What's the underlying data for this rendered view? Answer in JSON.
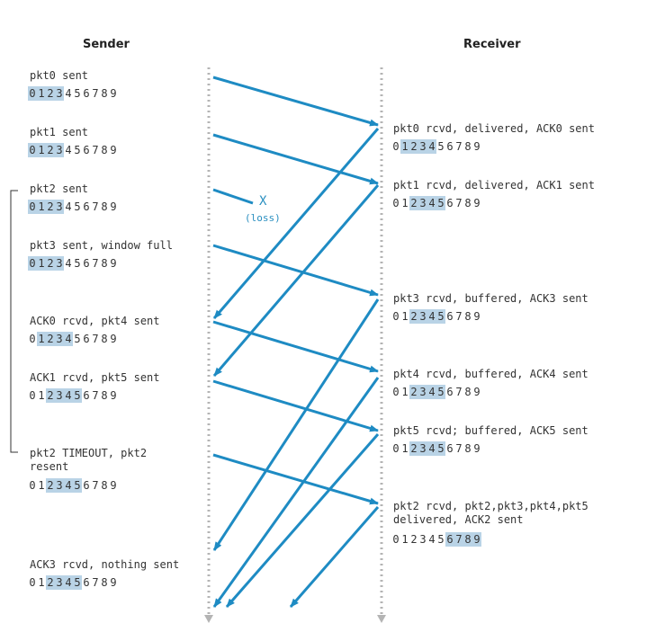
{
  "headers": {
    "sender": "Sender",
    "receiver": "Receiver"
  },
  "sender_events": [
    {
      "text": "pkt0 sent",
      "window": [
        0,
        1,
        2,
        3
      ]
    },
    {
      "text": "pkt1 sent",
      "window": [
        0,
        1,
        2,
        3
      ]
    },
    {
      "text": "pkt2 sent",
      "window": [
        0,
        1,
        2,
        3
      ]
    },
    {
      "text": "pkt3 sent, window full",
      "window": [
        0,
        1,
        2,
        3
      ]
    },
    {
      "text": "ACK0 rcvd, pkt4 sent",
      "window": [
        1,
        2,
        3,
        4
      ]
    },
    {
      "text": "ACK1 rcvd, pkt5 sent",
      "window": [
        2,
        3,
        4,
        5
      ]
    },
    {
      "text": "pkt2 TIMEOUT, pkt2\nresent",
      "window": [
        2,
        3,
        4,
        5
      ]
    },
    {
      "text": "ACK3 rcvd, nothing sent",
      "window": [
        2,
        3,
        4,
        5
      ]
    }
  ],
  "receiver_events": [
    {
      "text": "pkt0 rcvd, delivered, ACK0 sent",
      "window": [
        1,
        2,
        3,
        4
      ]
    },
    {
      "text": "pkt1 rcvd, delivered, ACK1 sent",
      "window": [
        2,
        3,
        4,
        5
      ]
    },
    {
      "text": "pkt3 rcvd, buffered, ACK3 sent",
      "window": [
        2,
        3,
        4,
        5
      ]
    },
    {
      "text": "pkt4 rcvd, buffered, ACK4 sent",
      "window": [
        2,
        3,
        4,
        5
      ]
    },
    {
      "text": "pkt5 rcvd; buffered, ACK5 sent",
      "window": [
        2,
        3,
        4,
        5
      ]
    },
    {
      "text": "pkt2 rcvd, pkt2,pkt3,pkt4,pkt5\ndelivered, ACK2 sent",
      "window": [
        6,
        7,
        8,
        9
      ]
    }
  ],
  "sequence_digits": [
    "0",
    "1",
    "2",
    "3",
    "4",
    "5",
    "6",
    "7",
    "8",
    "9"
  ],
  "loss": {
    "mark": "X",
    "label": "(loss)"
  },
  "colors": {
    "arrow": "#1e8bc3",
    "window": "#b9d3e6",
    "timeline": "#b4b4b4"
  }
}
